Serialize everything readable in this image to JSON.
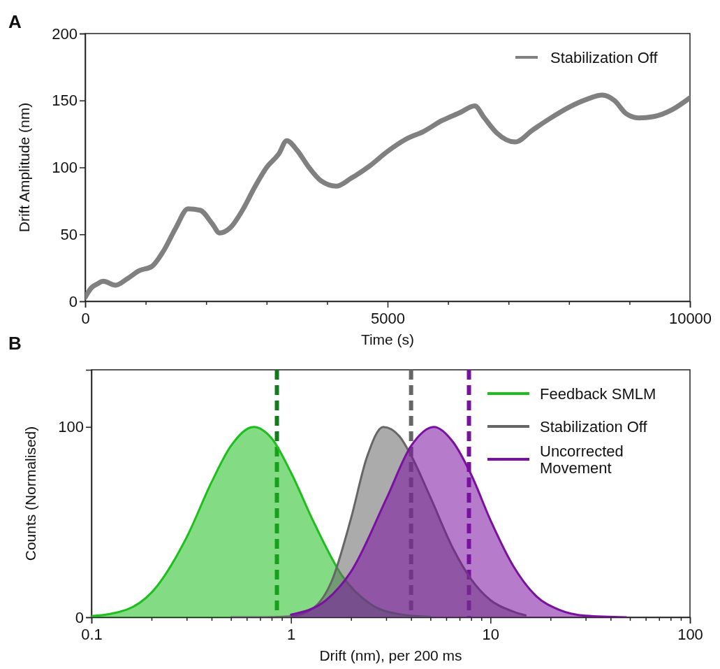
{
  "chart_data": [
    {
      "type": "line",
      "xlabel": "Time (s)",
      "ylabel": "Drift Amplitude (nm)",
      "annotations": [
        "A"
      ],
      "legend": "top right",
      "grid": false,
      "line_style": "solid",
      "xlim": [
        0,
        10000
      ],
      "ylim": [
        0,
        200
      ],
      "xticks": [
        0,
        {
          "value": 1000,
          "label": null
        },
        {
          "value": 2000,
          "label": null
        },
        {
          "value": 3000,
          "label": null
        },
        {
          "value": 4000,
          "label": null
        },
        5000,
        {
          "value": 6000,
          "label": null
        },
        {
          "value": 7000,
          "label": null
        },
        {
          "value": 8000,
          "label": null
        },
        {
          "value": 9000,
          "label": null
        },
        10000
      ],
      "yticks": [
        0,
        50,
        100,
        150,
        200
      ],
      "series": [
        {
          "name": "Stabilization Off",
          "color": "#808080",
          "x": [
            0,
            100,
            200,
            300,
            500,
            700,
            900,
            1100,
            1300,
            1500,
            1700,
            1900,
            2100,
            2222,
            2400,
            2600,
            2800,
            3000,
            3200,
            3333,
            3500,
            3700,
            3900,
            4150,
            4400,
            4700,
            5000,
            5300,
            5600,
            5900,
            6200,
            6440,
            6600,
            6800,
            7110,
            7400,
            7700,
            8000,
            8300,
            8550,
            8750,
            8950,
            9150,
            9400,
            9700,
            10000
          ],
          "values": [
            3,
            10,
            13,
            15,
            12,
            17,
            23,
            26,
            38,
            55,
            69,
            68,
            58,
            51,
            55,
            68,
            85,
            100,
            110,
            120,
            113,
            100,
            90,
            86,
            92,
            101,
            112,
            121,
            127,
            135,
            141,
            146,
            137,
            126,
            119,
            128,
            137,
            145,
            151,
            154,
            150,
            140,
            137,
            138,
            143,
            152
          ]
        }
      ]
    },
    {
      "type": "area",
      "xlabel": "Drift (nm), per 200 ms",
      "ylabel": "Counts (Normalised)",
      "annotations": [
        "B"
      ],
      "legend": "top right",
      "grid": false,
      "log": "x",
      "xlim": [
        0.1,
        100
      ],
      "ylim": [
        0,
        130
      ],
      "xticks": [
        0.1,
        {
          "value": 0.2,
          "label": null
        },
        {
          "value": 0.3,
          "label": null
        },
        {
          "value": 0.4,
          "label": null
        },
        {
          "value": 0.5,
          "label": null
        },
        {
          "value": 0.6,
          "label": null
        },
        {
          "value": 0.7,
          "label": null
        },
        {
          "value": 0.8,
          "label": null
        },
        {
          "value": 0.9,
          "label": null
        },
        1,
        {
          "value": 2,
          "label": null
        },
        {
          "value": 3,
          "label": null
        },
        {
          "value": 4,
          "label": null
        },
        {
          "value": 5,
          "label": null
        },
        {
          "value": 6,
          "label": null
        },
        {
          "value": 7,
          "label": null
        },
        {
          "value": 8,
          "label": null
        },
        {
          "value": 9,
          "label": null
        },
        10,
        {
          "value": 20,
          "label": null
        },
        {
          "value": 30,
          "label": null
        },
        {
          "value": 40,
          "label": null
        },
        {
          "value": 50,
          "label": null
        },
        {
          "value": 60,
          "label": null
        },
        {
          "value": 70,
          "label": null
        },
        {
          "value": 80,
          "label": null
        },
        {
          "value": 90,
          "label": null
        },
        100
      ],
      "yticks": [
        0,
        100
      ],
      "ref_lines": [
        {
          "axis": "x",
          "value": 0.85,
          "color": "#137a1e",
          "line_style": "dashed"
        },
        {
          "axis": "x",
          "value": 4,
          "color": "#666666",
          "line_style": "dashed"
        },
        {
          "axis": "x",
          "value": 7.8,
          "color": "#7a10a0",
          "line_style": "dashed"
        }
      ],
      "series": [
        {
          "name": "Feedback SMLM",
          "color": "#1dbf1d",
          "x": [
            0.1,
            0.15,
            0.2,
            0.3,
            0.4,
            0.5,
            0.65,
            0.8,
            1,
            1.3,
            1.8,
            2.5,
            3.5,
            5
          ],
          "values": [
            0.6,
            4,
            13,
            42,
            71,
            90,
            100,
            94,
            76,
            50,
            22,
            7,
            1.6,
            0.2
          ]
        },
        {
          "name": "Stabilization Off",
          "color": "#666666",
          "x": [
            0.5,
            0.7,
            1,
            1.3,
            1.6,
            2,
            2.4,
            2.9,
            3.5,
            4,
            5,
            6.5,
            8,
            10,
            13,
            15
          ],
          "values": [
            0,
            0,
            0.5,
            5,
            19,
            52,
            84,
            100,
            95,
            85,
            63,
            36,
            20,
            9,
            3,
            1
          ]
        },
        {
          "name": "Uncorrected Movement",
          "color": "#7a10a0",
          "x": [
            1,
            1.5,
            2,
            3,
            4,
            5.2,
            6.5,
            8,
            10,
            13,
            17,
            22,
            30,
            48
          ],
          "values": [
            1.4,
            9,
            24,
            62,
            90,
            100,
            92,
            75,
            51,
            27,
            11,
            4,
            0.8,
            0
          ]
        }
      ]
    }
  ]
}
